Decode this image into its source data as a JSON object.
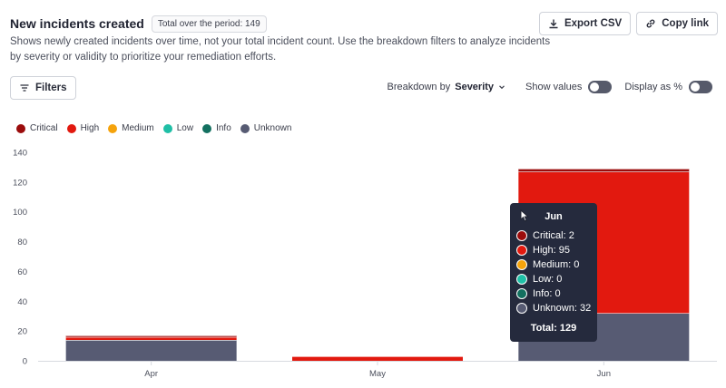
{
  "header": {
    "title": "New incidents created",
    "total_badge": "Total over the period: 149",
    "description": "Shows newly created incidents over time, not your total incident count. Use the breakdown filters to analyze incidents by severity or validity to prioritize your remediation efforts."
  },
  "toolbar": {
    "export_label": "Export CSV",
    "copy_label": "Copy link",
    "filters_label": "Filters",
    "breakdown_label": "Breakdown by",
    "breakdown_value": "Severity",
    "show_values_label": "Show values",
    "show_values_on": false,
    "display_pct_label": "Display as %",
    "display_pct_on": false
  },
  "icons": {
    "export": "download-icon",
    "copy": "link-icon",
    "filters": "filter-lines-icon",
    "breakdown": "chevron-down-icon"
  },
  "chart_data": {
    "type": "bar",
    "stacked": true,
    "categories": [
      "Apr",
      "May",
      "Jun"
    ],
    "series": [
      {
        "name": "Critical",
        "color": "#9b0c0c",
        "values": [
          1,
          0,
          2
        ]
      },
      {
        "name": "High",
        "color": "#e2190f",
        "values": [
          2,
          3,
          95
        ]
      },
      {
        "name": "Medium",
        "color": "#f5a30c",
        "values": [
          0,
          0,
          0
        ]
      },
      {
        "name": "Low",
        "color": "#1fbfa6",
        "values": [
          0,
          0,
          0
        ]
      },
      {
        "name": "Info",
        "color": "#137060",
        "values": [
          0,
          0,
          0
        ]
      },
      {
        "name": "Unknown",
        "color": "#575b73",
        "values": [
          14,
          0,
          32
        ]
      }
    ],
    "yticks": [
      0,
      20,
      40,
      60,
      80,
      100,
      120,
      140
    ],
    "ylim": [
      0,
      140
    ],
    "grid": false,
    "legend_position": "top-left"
  },
  "tooltip": {
    "title": "Jun",
    "rows": [
      {
        "label": "Critical: 2",
        "color": "#9b0c0c"
      },
      {
        "label": "High: 95",
        "color": "#e2190f"
      },
      {
        "label": "Medium: 0",
        "color": "#f5a30c"
      },
      {
        "label": "Low: 0",
        "color": "#1fbfa6"
      },
      {
        "label": "Info: 0",
        "color": "#137060"
      },
      {
        "label": "Unknown: 32",
        "color": "#575b73"
      }
    ],
    "total": "Total: 129"
  }
}
